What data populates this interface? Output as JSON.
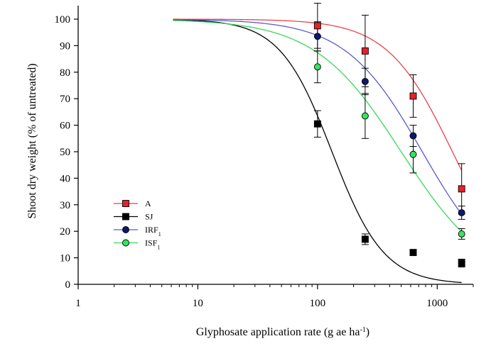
{
  "chart_data": {
    "type": "scatter",
    "xscale": "log",
    "xlabel": "Glyphosate application rate (g ae ha",
    "xlabel_sup": "-1",
    "xlabel_close": ")",
    "ylabel": "Shoot dry weight (% of untreated)",
    "xlim": [
      1,
      2000
    ],
    "ylim": [
      0,
      105
    ],
    "x_ticks": [
      1,
      10,
      100,
      1000
    ],
    "x_tick_labels": [
      "1",
      "10",
      "100",
      "1000"
    ],
    "y_ticks": [
      0,
      10,
      20,
      30,
      40,
      50,
      60,
      70,
      80,
      90,
      100
    ],
    "y_tick_labels": [
      "0",
      "10",
      "20",
      "30",
      "40",
      "50",
      "60",
      "70",
      "80",
      "90",
      "100"
    ],
    "grid": false,
    "legend_position": "bottom-left",
    "x": [
      100,
      250,
      630,
      1600
    ],
    "series": [
      {
        "name": "A",
        "name_sub": "",
        "marker": "square",
        "marker_color": "#e8202a",
        "line_color": "#e8424a",
        "values": [
          97.5,
          88,
          71,
          36
        ],
        "errors": [
          8.5,
          13.5,
          8,
          9.5
        ],
        "fit": {
          "top": 100,
          "bottom": 0,
          "ed50": 1340,
          "slope": 1.6
        }
      },
      {
        "name": "SJ",
        "name_sub": "",
        "marker": "square",
        "marker_color": "#000000",
        "line_color": "#000000",
        "values": [
          60.5,
          17,
          12,
          8
        ],
        "errors": [
          5,
          2,
          1,
          1.5
        ],
        "fit": {
          "top": 100,
          "bottom": 0,
          "ed50": 132,
          "slope": 2.0
        }
      },
      {
        "name": "IRF",
        "name_sub": "1",
        "marker": "circle",
        "marker_color": "#0a1a6e",
        "line_color": "#5a5ad0",
        "values": [
          93.5,
          76.5,
          56,
          27
        ],
        "errors": [
          5.5,
          5,
          4,
          2.5
        ],
        "fit": {
          "top": 100,
          "bottom": 0,
          "ed50": 750,
          "slope": 1.35
        }
      },
      {
        "name": "ISF",
        "name_sub": "1",
        "marker": "circle",
        "marker_color": "#33e660",
        "line_color": "#3ad65a",
        "values": [
          82,
          63.5,
          49,
          19
        ],
        "errors": [
          6,
          8.5,
          7,
          2
        ],
        "fit": {
          "top": 100,
          "bottom": 0,
          "ed50": 500,
          "slope": 1.2
        }
      }
    ]
  }
}
